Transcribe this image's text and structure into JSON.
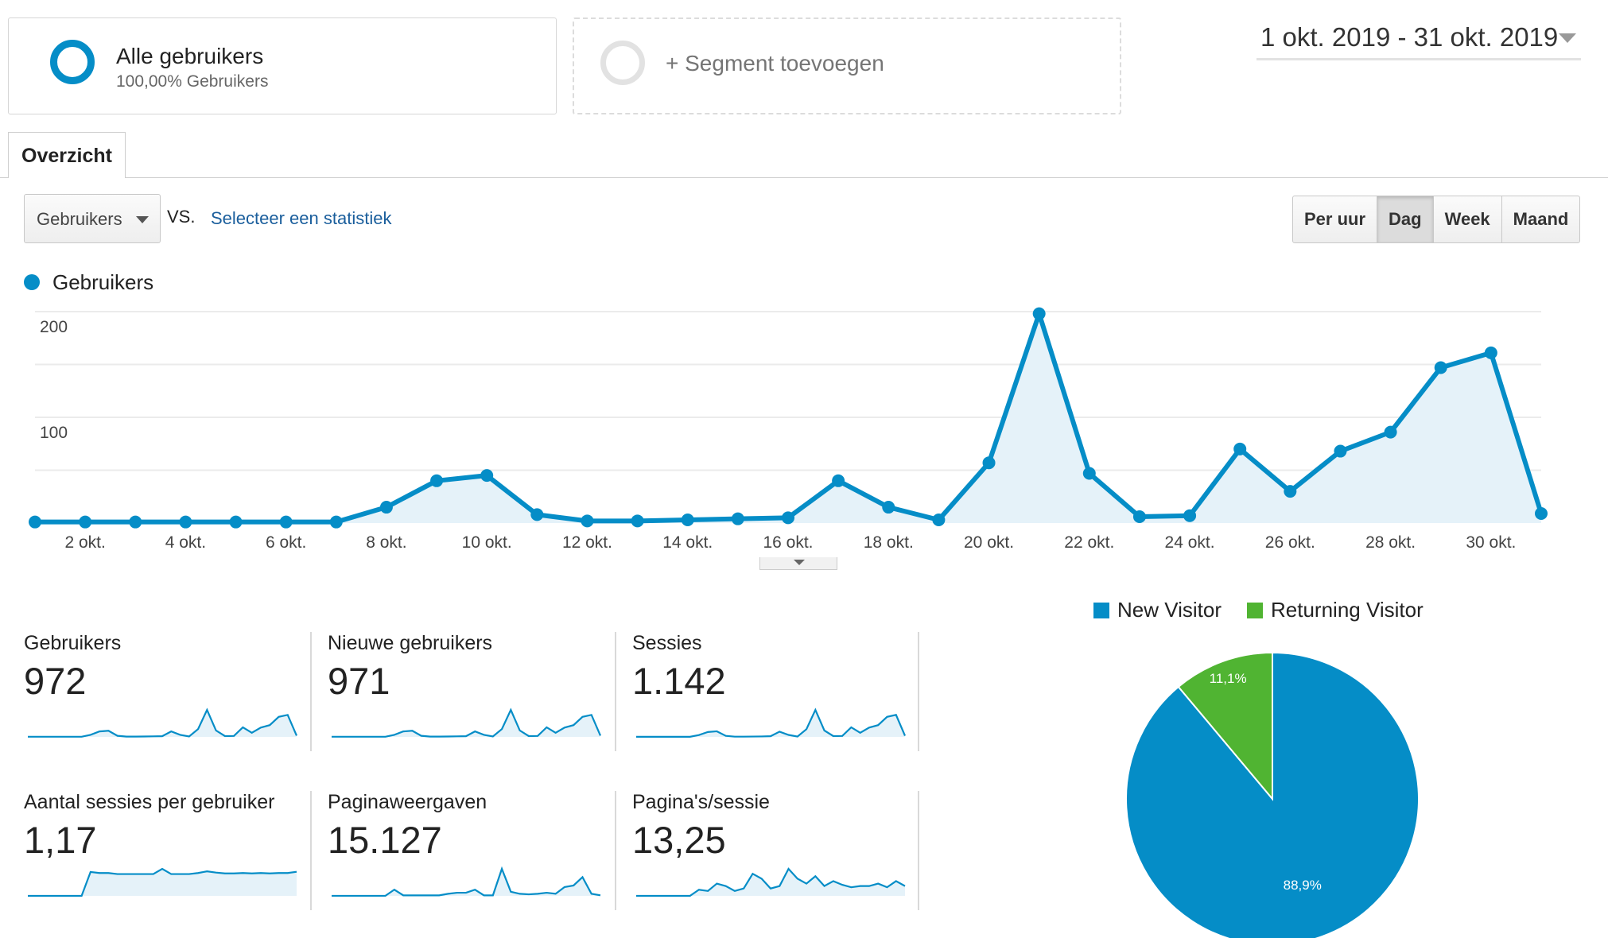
{
  "segments": {
    "active": {
      "title": "Alle gebruikers",
      "subtitle": "100,00% Gebruikers",
      "ring_color": "#058dc7"
    },
    "add": {
      "label": "+ Segment toevoegen",
      "ring_color": "#e2e2e2"
    }
  },
  "date_range": {
    "label": "1 okt. 2019 - 31 okt. 2019"
  },
  "tabs": [
    {
      "label": "Overzicht",
      "active": true
    }
  ],
  "controls": {
    "metric_select": "Gebruikers",
    "vs_label": "VS.",
    "compare_link": "Selecteer een statistiek",
    "granularity": [
      {
        "label": "Per uur",
        "active": false
      },
      {
        "label": "Dag",
        "active": true
      },
      {
        "label": "Week",
        "active": false
      },
      {
        "label": "Maand",
        "active": false
      }
    ]
  },
  "colors": {
    "series": "#058dc7",
    "area_fill": "#e5f2f9",
    "grid": "#ebebeb",
    "new_visitor": "#058dc7",
    "returning_visitor": "#50b432"
  },
  "chart_data": [
    {
      "type": "line",
      "series": [
        {
          "name": "Gebruikers",
          "values": [
            1,
            1,
            1,
            1,
            1,
            1,
            1,
            15,
            40,
            45,
            8,
            2,
            2,
            3,
            4,
            5,
            40,
            15,
            3,
            57,
            198,
            47,
            6,
            7,
            70,
            30,
            68,
            86,
            147,
            161,
            9
          ]
        }
      ],
      "x": [
        "1 okt.",
        "2 okt.",
        "3 okt.",
        "4 okt.",
        "5 okt.",
        "6 okt.",
        "7 okt.",
        "8 okt.",
        "9 okt.",
        "10 okt.",
        "11 okt.",
        "12 okt.",
        "13 okt.",
        "14 okt.",
        "15 okt.",
        "16 okt.",
        "17 okt.",
        "18 okt.",
        "19 okt.",
        "20 okt.",
        "21 okt.",
        "22 okt.",
        "23 okt.",
        "24 okt.",
        "25 okt.",
        "26 okt.",
        "27 okt.",
        "28 okt.",
        "29 okt.",
        "30 okt.",
        "31 okt."
      ],
      "x_tick_labels": [
        "2 okt.",
        "4 okt.",
        "6 okt.",
        "8 okt.",
        "10 okt.",
        "12 okt.",
        "14 okt.",
        "16 okt.",
        "18 okt.",
        "20 okt.",
        "22 okt.",
        "24 okt.",
        "26 okt.",
        "28 okt.",
        "30 okt."
      ],
      "y_tick_labels": [
        "200",
        "100"
      ],
      "ylim": [
        0,
        200
      ],
      "grid": true
    },
    {
      "type": "pie",
      "legend": [
        "New Visitor",
        "Returning Visitor"
      ],
      "legend_placement": "top",
      "slices": [
        {
          "name": "New Visitor",
          "value": 88.9,
          "label": "88,9%"
        },
        {
          "name": "Returning Visitor",
          "value": 11.1,
          "label": "11,1%"
        }
      ]
    }
  ],
  "kpis": [
    {
      "label": "Gebruikers",
      "value": "972",
      "spark": [
        1,
        1,
        1,
        1,
        1,
        1,
        1,
        15,
        40,
        45,
        8,
        2,
        2,
        3,
        4,
        5,
        40,
        15,
        3,
        57,
        198,
        47,
        6,
        7,
        70,
        30,
        68,
        86,
        147,
        161,
        9
      ],
      "filled": false
    },
    {
      "label": "Nieuwe gebruikers",
      "value": "971",
      "spark": [
        1,
        1,
        1,
        1,
        1,
        1,
        1,
        15,
        40,
        45,
        8,
        2,
        2,
        3,
        4,
        5,
        40,
        15,
        3,
        57,
        198,
        47,
        6,
        7,
        70,
        30,
        68,
        86,
        147,
        161,
        9
      ],
      "filled": false
    },
    {
      "label": "Sessies",
      "value": "1.142",
      "spark": [
        1,
        1,
        1,
        1,
        1,
        1,
        1,
        16,
        42,
        48,
        9,
        2,
        2,
        3,
        4,
        6,
        45,
        17,
        3,
        66,
        232,
        55,
        7,
        8,
        82,
        35,
        80,
        101,
        172,
        189,
        10
      ],
      "filled": false
    },
    {
      "label": "Aantal sessies per gebruiker",
      "value": "1,17",
      "spark": [
        0,
        0,
        0,
        0,
        0,
        0,
        0,
        1.15,
        1.1,
        1.1,
        1.05,
        1.05,
        1.05,
        1.05,
        1.05,
        1.3,
        1.05,
        1.05,
        1.05,
        1.1,
        1.18,
        1.12,
        1.08,
        1.08,
        1.1,
        1.08,
        1.1,
        1.08,
        1.1,
        1.1,
        1.16
      ],
      "filled": true
    },
    {
      "label": "Paginaweergaven",
      "value": "15.127",
      "spark": [
        1,
        1,
        1,
        1,
        1,
        1,
        1,
        120,
        10,
        10,
        10,
        10,
        10,
        40,
        60,
        60,
        120,
        10,
        10,
        520,
        80,
        40,
        30,
        40,
        60,
        40,
        170,
        200,
        360,
        40,
        10
      ],
      "filled": true
    },
    {
      "label": "Pagina's/sessie",
      "value": "13,25",
      "spark": [
        0,
        0,
        0,
        0,
        0,
        0,
        0,
        5,
        4,
        10,
        8,
        4,
        6,
        18,
        14,
        6,
        8,
        22,
        14,
        10,
        16,
        8,
        12,
        9,
        7,
        8,
        8,
        10,
        7,
        12,
        8
      ],
      "filled": true
    }
  ]
}
